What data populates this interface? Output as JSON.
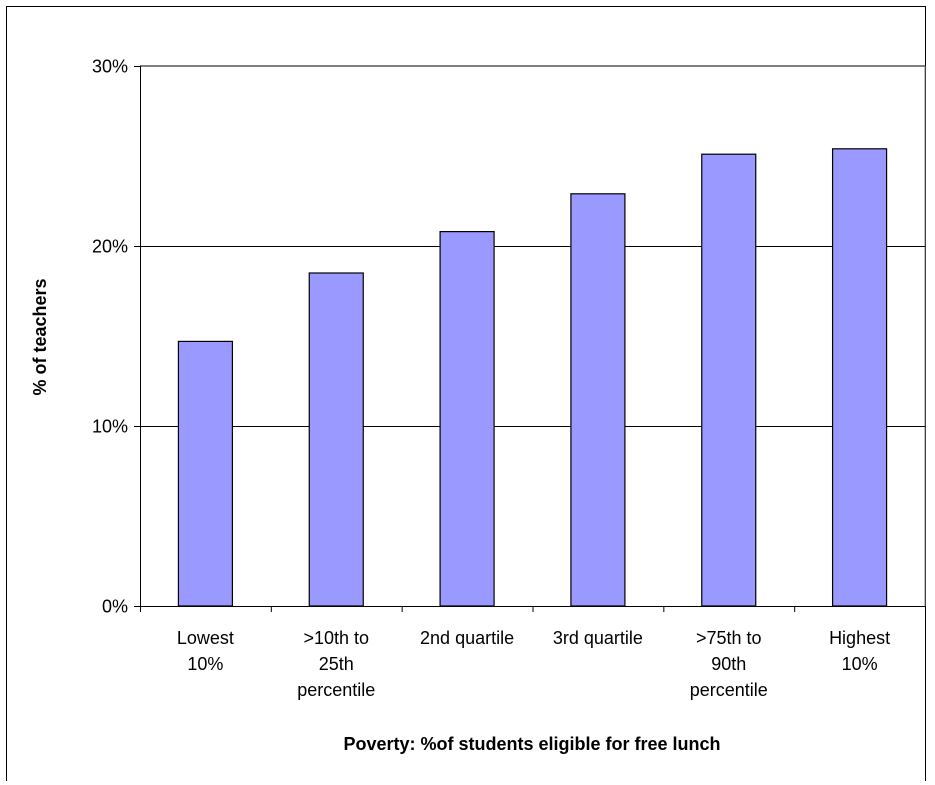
{
  "chart_data": {
    "type": "bar",
    "categories": [
      [
        "Lowest",
        "10%"
      ],
      [
        ">10th to",
        "25th",
        "percentile"
      ],
      [
        "2nd quartile"
      ],
      [
        "3rd quartile"
      ],
      [
        ">75th to",
        "90th",
        "percentile"
      ],
      [
        "Highest",
        "10%"
      ]
    ],
    "values": [
      14.7,
      18.5,
      20.8,
      22.9,
      25.1,
      25.4
    ],
    "ylim": [
      0,
      30
    ],
    "yticks": [
      0,
      10,
      20,
      30
    ],
    "ytick_labels": [
      "0%",
      "10%",
      "20%",
      "30%"
    ],
    "xlabel": "Poverty: %of students eligible for free lunch",
    "ylabel": "% of teachers",
    "grid": true,
    "colors": {
      "bar_fill": "#9999ff",
      "bar_stroke": "#000000",
      "grid": "#000000"
    }
  }
}
